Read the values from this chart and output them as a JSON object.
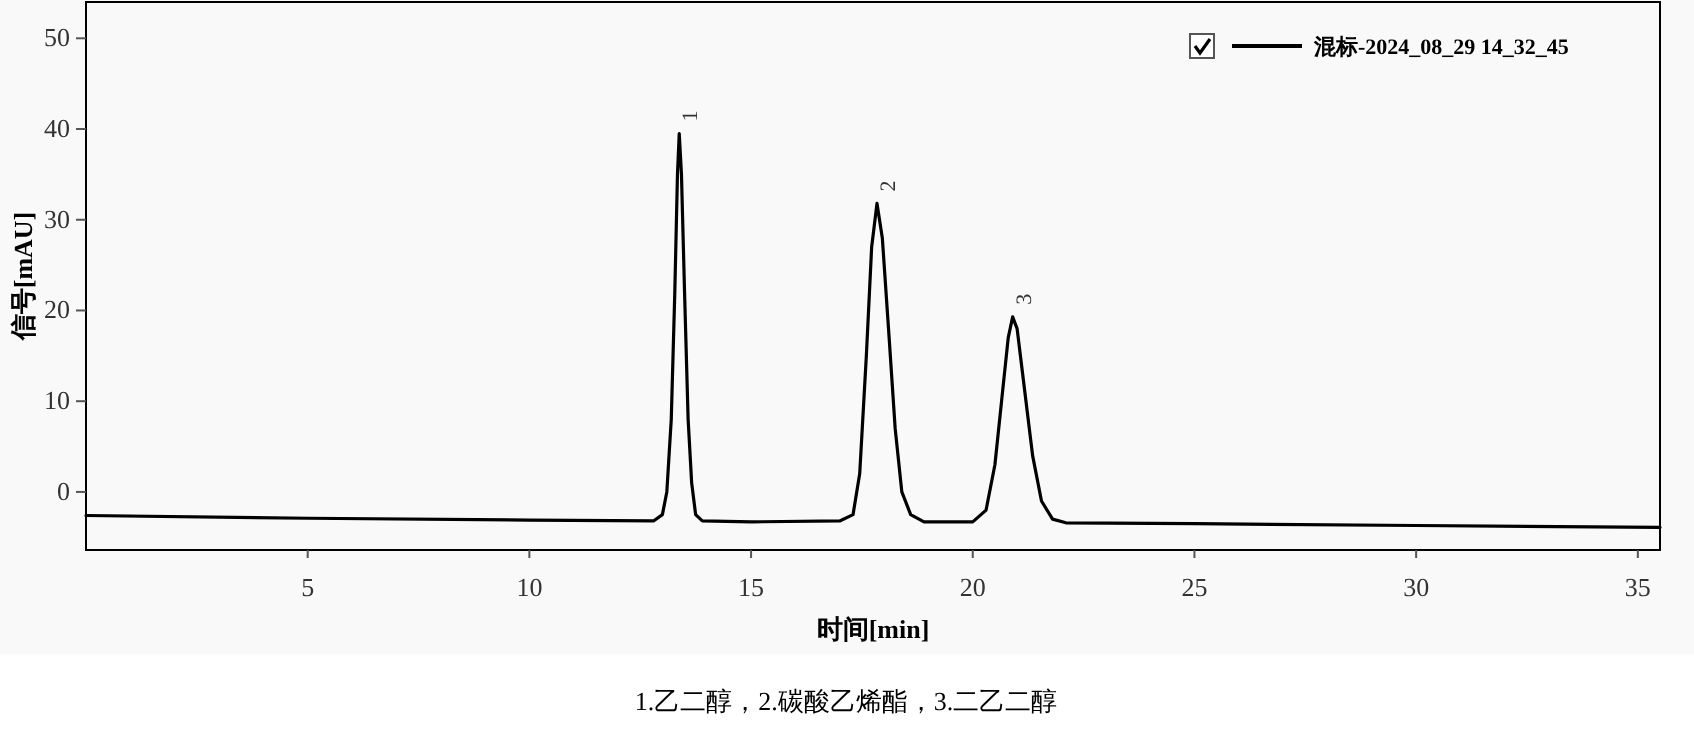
{
  "chart_data": {
    "type": "line",
    "xlabel": "时间[min]",
    "ylabel": "信号[mAU]",
    "xlim": [
      0,
      35.5
    ],
    "ylim": [
      -6.4,
      54
    ],
    "xticks": [
      5,
      10,
      15,
      20,
      25,
      30,
      35
    ],
    "yticks": [
      0,
      10,
      20,
      30,
      40,
      50
    ],
    "legend": "top right",
    "line_style": "solid",
    "marker": "none",
    "series": [
      {
        "name": "混标-2024_08_29 14_32_45",
        "color": "#000000",
        "x": [
          0,
          5,
          10,
          12.8,
          13.0,
          13.1,
          13.2,
          13.28,
          13.34,
          13.38,
          13.43,
          13.5,
          13.58,
          13.66,
          13.75,
          13.9,
          15,
          17.0,
          17.3,
          17.45,
          17.6,
          17.72,
          17.84,
          17.96,
          18.1,
          18.25,
          18.4,
          18.6,
          18.9,
          20.0,
          20.3,
          20.5,
          20.65,
          20.8,
          20.9,
          21.0,
          21.15,
          21.35,
          21.55,
          21.8,
          22.1,
          25,
          30,
          35.5
        ],
        "values": [
          -2.6,
          -2.9,
          -3.1,
          -3.2,
          -2.5,
          0,
          8,
          22,
          35,
          39.5,
          35,
          22,
          8,
          1,
          -2.5,
          -3.2,
          -3.3,
          -3.2,
          -2.5,
          2,
          15,
          27,
          31.8,
          28,
          18,
          7,
          0,
          -2.5,
          -3.3,
          -3.3,
          -2,
          3,
          10,
          17,
          19.3,
          18,
          12,
          4,
          -1,
          -3,
          -3.4,
          -3.5,
          -3.7,
          -3.9
        ]
      }
    ],
    "annotations": [
      {
        "text": "1",
        "x": 13.38,
        "y": 39.5
      },
      {
        "text": "2",
        "x": 17.84,
        "y": 31.8
      },
      {
        "text": "3",
        "x": 20.9,
        "y": 19.3
      },
      "1.乙二醇，2.碳酸乙烯酯，3.二乙二醇"
    ]
  }
}
